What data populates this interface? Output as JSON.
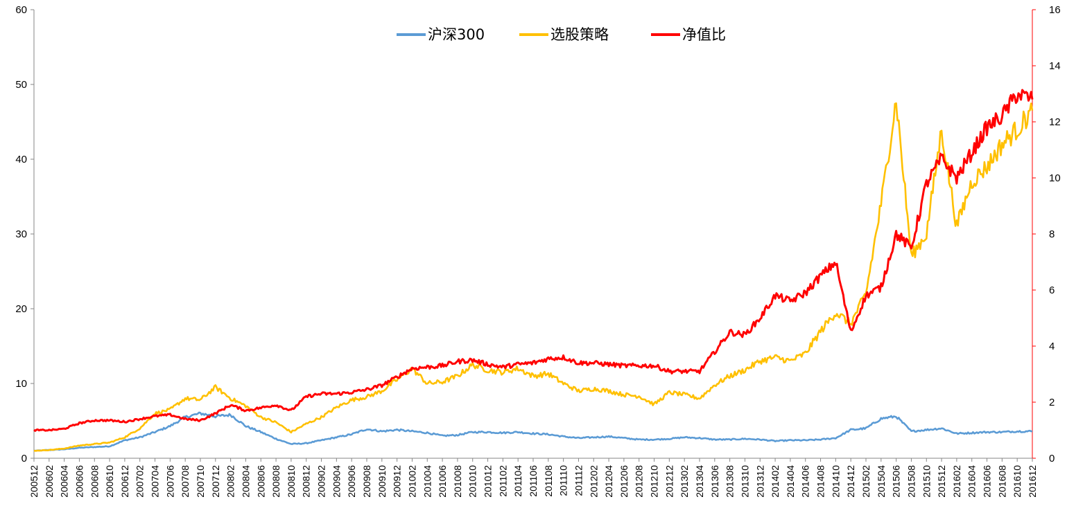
{
  "chart_data": {
    "type": "line",
    "title": "",
    "legend_position": "top-center",
    "grid": false,
    "y_left": {
      "min": 0,
      "max": 60,
      "ticks": [
        "0",
        "10",
        "20",
        "30",
        "40",
        "50",
        "60"
      ]
    },
    "y_right": {
      "min": 0,
      "max": 16,
      "ticks": [
        "0",
        "2",
        "4",
        "6",
        "8",
        "10",
        "12",
        "14",
        "16"
      ],
      "color": "#ff0000"
    },
    "x_tick_labels": [
      "200512",
      "200602",
      "200604",
      "200606",
      "200608",
      "200610",
      "200612",
      "200702",
      "200704",
      "200706",
      "200708",
      "200710",
      "200712",
      "200802",
      "200804",
      "200806",
      "200808",
      "200810",
      "200812",
      "200902",
      "200904",
      "200906",
      "200908",
      "200910",
      "200912",
      "201002",
      "201004",
      "201006",
      "201008",
      "201010",
      "201012",
      "201102",
      "201104",
      "201106",
      "201108",
      "201110",
      "201112",
      "201202",
      "201204",
      "201206",
      "201208",
      "201210",
      "201212",
      "201302",
      "201304",
      "201306",
      "201308",
      "201310",
      "201312",
      "201402",
      "201404",
      "201406",
      "201408",
      "201410",
      "201412",
      "201502",
      "201504",
      "201506",
      "201508",
      "201510",
      "201512",
      "201602",
      "201604",
      "201606",
      "201608",
      "201610",
      "201612"
    ],
    "series": [
      {
        "name": "沪深300",
        "axis": "left",
        "color": "#5b9bd5",
        "values": [
          1.0,
          1.1,
          1.2,
          1.4,
          1.5,
          1.6,
          2.4,
          2.8,
          3.5,
          4.3,
          5.5,
          6.0,
          5.6,
          5.8,
          4.3,
          3.5,
          2.6,
          1.9,
          2.0,
          2.4,
          2.8,
          3.2,
          3.9,
          3.6,
          3.8,
          3.6,
          3.4,
          3.0,
          3.1,
          3.5,
          3.5,
          3.4,
          3.5,
          3.3,
          3.2,
          2.9,
          2.7,
          2.8,
          2.9,
          2.7,
          2.5,
          2.5,
          2.6,
          2.8,
          2.7,
          2.5,
          2.5,
          2.6,
          2.5,
          2.3,
          2.4,
          2.4,
          2.5,
          2.7,
          3.8,
          4.0,
          5.3,
          5.6,
          3.6,
          3.8,
          4.0,
          3.3,
          3.4,
          3.5,
          3.5,
          3.6,
          3.6
        ]
      },
      {
        "name": "选股策略",
        "axis": "left",
        "color": "#ffc000",
        "values": [
          1.0,
          1.1,
          1.3,
          1.7,
          1.9,
          2.1,
          2.8,
          4.0,
          6.0,
          6.5,
          8.0,
          7.8,
          9.5,
          8.0,
          7.0,
          5.5,
          4.8,
          3.5,
          4.6,
          5.5,
          6.8,
          7.8,
          8.2,
          9.0,
          10.5,
          12.0,
          10.0,
          10.2,
          11.0,
          12.5,
          11.8,
          11.5,
          12.0,
          11.0,
          11.3,
          10.0,
          9.0,
          9.3,
          9.0,
          8.5,
          8.3,
          7.2,
          8.8,
          8.5,
          8.0,
          9.8,
          11.0,
          11.8,
          13.0,
          13.5,
          13.0,
          14.0,
          17.0,
          19.5,
          18.0,
          22.0,
          34.0,
          48.0,
          27.0,
          30.0,
          44.0,
          31.0,
          37.0,
          39.0,
          42.0,
          44.0,
          46.5
        ]
      },
      {
        "name": "净值比",
        "axis": "right",
        "color": "#ff0000",
        "values": [
          1.0,
          1.0,
          1.05,
          1.25,
          1.35,
          1.35,
          1.3,
          1.4,
          1.5,
          1.55,
          1.4,
          1.35,
          1.6,
          1.9,
          1.7,
          1.8,
          1.9,
          1.7,
          2.2,
          2.3,
          2.3,
          2.35,
          2.45,
          2.6,
          2.9,
          3.2,
          3.25,
          3.3,
          3.45,
          3.5,
          3.35,
          3.25,
          3.35,
          3.4,
          3.55,
          3.6,
          3.4,
          3.4,
          3.35,
          3.3,
          3.3,
          3.3,
          3.1,
          3.1,
          3.1,
          3.8,
          4.5,
          4.4,
          5.0,
          5.8,
          5.6,
          5.9,
          6.5,
          7.0,
          4.5,
          5.8,
          6.1,
          8.0,
          7.5,
          9.8,
          10.7,
          10.0,
          10.9,
          11.8,
          12.2,
          13.0,
          12.8
        ]
      }
    ]
  }
}
